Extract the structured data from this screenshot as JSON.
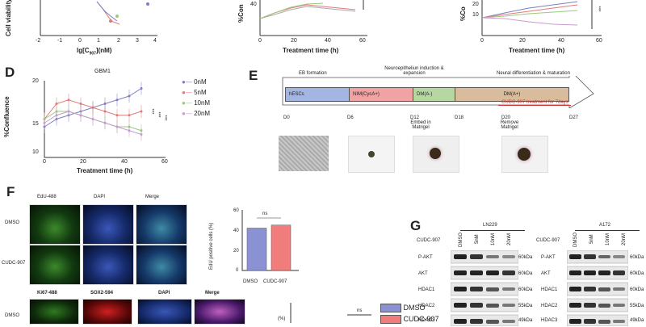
{
  "panel_letters": {
    "d": "D",
    "e": "E",
    "f": "F",
    "g": "G"
  },
  "topA": {
    "ylabel": "Cell viability",
    "xlabel": "lg[C",
    "xlabel_sub": "907",
    "xlabel_end": "](nM)",
    "ticks": [
      "-2",
      "-1",
      "0",
      "1",
      "2",
      "3",
      "4"
    ]
  },
  "topB": {
    "ylabel": "%Con",
    "xlabel": "Treatment time  (h)",
    "ticks": [
      "0",
      "20",
      "40",
      "60"
    ],
    "ytick": "40"
  },
  "topC": {
    "ylabel": "%Co",
    "xlabel": "Treatment time  (h)",
    "ticks": [
      "0",
      "20",
      "40",
      "60"
    ],
    "yticks": [
      "10",
      "20",
      "30"
    ],
    "sig": "***"
  },
  "chartD": {
    "title": "GBM1",
    "ylabel": "%Confluence",
    "xlabel": "Treatment time  (h)",
    "yticks": [
      "10",
      "15",
      "20"
    ],
    "xticks": [
      "0",
      "20",
      "40",
      "60"
    ],
    "legend": [
      "0nM",
      "5nM",
      "10nM",
      "20nM"
    ],
    "colors": [
      "#7b7fc4",
      "#e07a7a",
      "#9bc97a",
      "#c89cd0"
    ],
    "sig": "***"
  },
  "panelE": {
    "header_top": [
      "EB formation",
      "Neuroepitheliun induction & expansion",
      "Neural differentiation & maturation"
    ],
    "stages": [
      "hESCs",
      "NIM(CycA+)",
      "DM(A-)",
      "DM(A+)"
    ],
    "treat": "CUDC-907 treatment for 7days",
    "days": [
      "D0",
      "D6",
      "D12",
      "D18",
      "D20",
      "D27"
    ],
    "notes": [
      "Embed in Matrigel",
      "Remove Matrigel"
    ]
  },
  "panelF": {
    "cols1": [
      "EdU-488",
      "DAPI",
      "Merge"
    ],
    "rows": [
      "DMSO",
      "CUDC-907"
    ],
    "cols2": [
      "Ki67-488",
      "SOX2-594",
      "DAPI",
      "Merge"
    ],
    "row3": "DMSO",
    "bar": {
      "ylabel": "EdU positive cells (%)",
      "yticks": [
        "0",
        "20",
        "40",
        "60"
      ],
      "categories": [
        "DMSO",
        "CUDC-907"
      ],
      "ns": "ns"
    },
    "legend": [
      "DMSO",
      "CUDC-907"
    ]
  },
  "chart_data": [
    {
      "type": "line",
      "title": "GBM1",
      "xlabel": "Treatment time  (h)",
      "ylabel": "%Confluence",
      "x": [
        0,
        6,
        12,
        18,
        24,
        30,
        36,
        42,
        48
      ],
      "series": [
        {
          "name": "0nM",
          "values": [
            14,
            15,
            15.5,
            16,
            16.5,
            17,
            17.5,
            18,
            19
          ]
        },
        {
          "name": "5nM",
          "values": [
            15,
            17,
            17.5,
            17,
            16.5,
            16,
            15.5,
            15.5,
            16
          ]
        },
        {
          "name": "10nM",
          "values": [
            15,
            16,
            16,
            15.5,
            15,
            14.5,
            14,
            14,
            13.5
          ]
        },
        {
          "name": "20nM",
          "values": [
            14.5,
            15.5,
            16,
            15.5,
            15,
            14.5,
            14,
            13.5,
            13
          ]
        }
      ],
      "xlim": [
        0,
        60
      ],
      "ylim": [
        10,
        20
      ]
    },
    {
      "type": "bar",
      "categories": [
        "DMSO",
        "CUDC-907"
      ],
      "values": [
        42,
        45
      ],
      "ylabel": "EdU positive cells (%)",
      "ylim": [
        0,
        60
      ]
    }
  ],
  "panelG": {
    "drug": "CUDC-907",
    "lines": [
      "LN229",
      "A172"
    ],
    "conc": [
      "DMSO",
      "5nM",
      "10nM",
      "20nM"
    ],
    "proteins": [
      "P-AKT",
      "AKT",
      "HDAC1",
      "HDAC2",
      "HDAC3"
    ],
    "sizes": [
      "60kDa",
      "60kDa",
      "60kDa",
      "55kDa",
      "49kDa"
    ]
  }
}
